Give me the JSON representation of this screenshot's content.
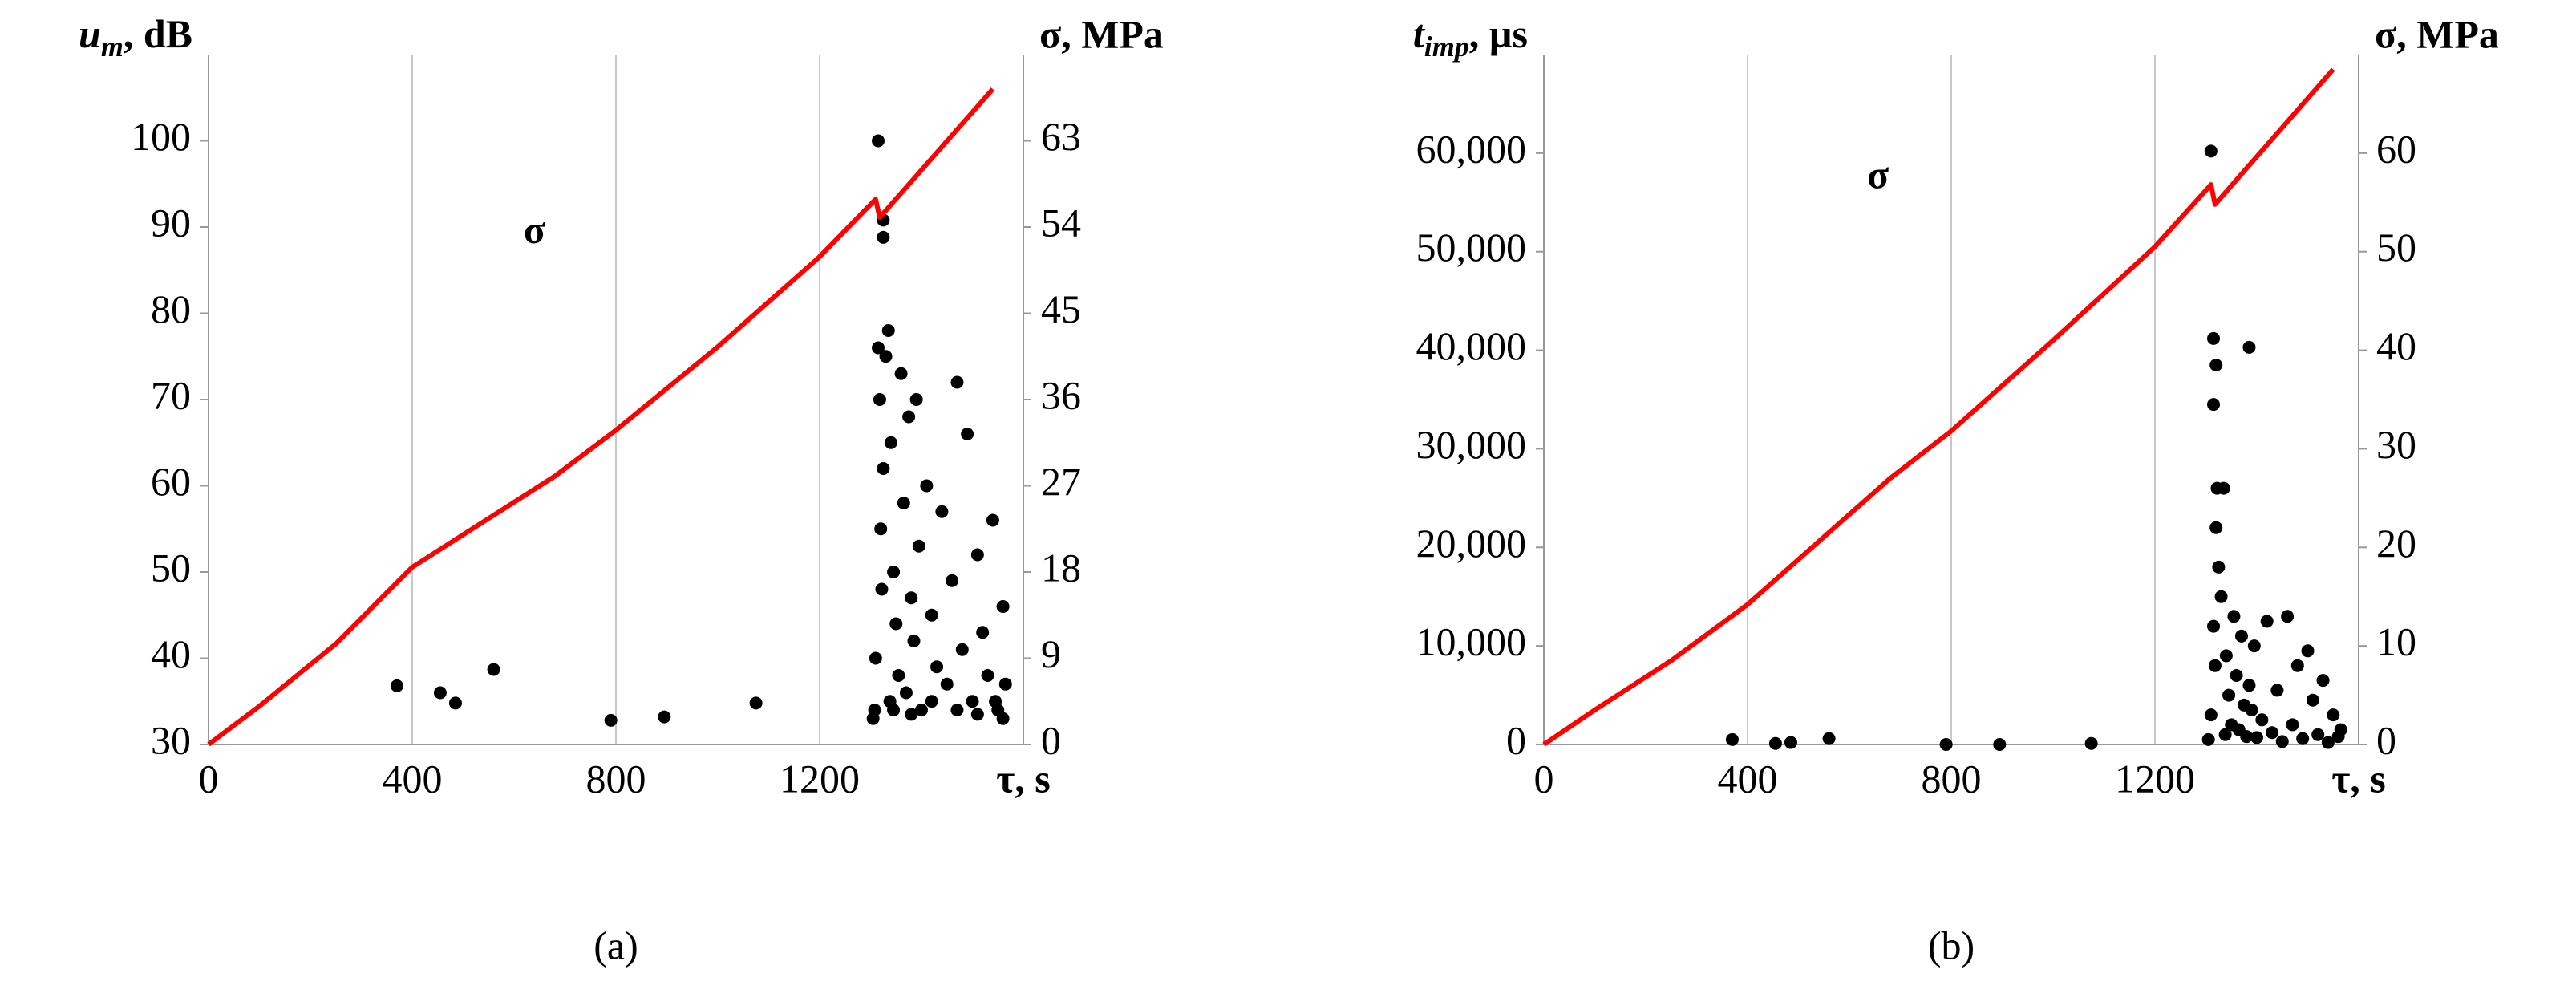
{
  "chart_data": [
    {
      "type": "scatter",
      "caption": "(a)",
      "xlabel": "τ, s",
      "ylabel": {
        "main": "u",
        "sub": "m",
        "unit": ", dB"
      },
      "y2label": "σ, MPa",
      "xlim": [
        0,
        1600
      ],
      "xticks": [
        0,
        400,
        800,
        1200
      ],
      "ylim": [
        30,
        110
      ],
      "yticks": [
        30,
        40,
        50,
        60,
        70,
        80,
        90,
        100
      ],
      "y2lim": [
        0,
        72
      ],
      "y2ticks": [
        0,
        9,
        18,
        27,
        36,
        45,
        54,
        63
      ],
      "grid": "x",
      "series": [
        {
          "type": "scatter",
          "color": "#000000",
          "x": [
            370,
            455,
            485,
            560,
            790,
            895,
            1075,
            1315,
            1325,
            1325,
            1305,
            1310,
            1315,
            1318,
            1320,
            1322,
            1325,
            1330,
            1335,
            1338,
            1340,
            1345,
            1350,
            1355,
            1360,
            1365,
            1370,
            1375,
            1380,
            1385,
            1390,
            1395,
            1400,
            1410,
            1420,
            1430,
            1440,
            1450,
            1460,
            1470,
            1480,
            1490,
            1500,
            1510,
            1520,
            1530,
            1540,
            1550,
            1560,
            1565,
            1308,
            1345,
            1380,
            1420,
            1470,
            1510,
            1545,
            1560
          ],
          "values": [
            36.8,
            36,
            34.8,
            38.7,
            32.8,
            33.2,
            34.8,
            100,
            90.8,
            88.8,
            33,
            40,
            76,
            70,
            55,
            48,
            62,
            75,
            78,
            35,
            65,
            50,
            44,
            38,
            73,
            58,
            36,
            68,
            47,
            42,
            70,
            53,
            34,
            60,
            45,
            39,
            57,
            37,
            49,
            72,
            41,
            66,
            35,
            52,
            43,
            38,
            56,
            34,
            46,
            37,
            34,
            34,
            33.5,
            35,
            34,
            33.5,
            35,
            33
          ]
        },
        {
          "type": "line",
          "name": "σ",
          "color": "#ff0000",
          "axis": "y2",
          "x": [
            0,
            100,
            250,
            400,
            680,
            800,
            1000,
            1200,
            1310,
            1318,
            1540
          ],
          "values": [
            0,
            4,
            10.5,
            18.5,
            28,
            32.8,
            41.5,
            50.9,
            56.9,
            55,
            68.4
          ]
        }
      ]
    },
    {
      "type": "scatter",
      "caption": "(b)",
      "xlabel": "τ, s",
      "ylabel": {
        "main": "t",
        "sub": "imp",
        "unit": ", µs"
      },
      "y2label": "σ, MPa",
      "xlim": [
        0,
        1600
      ],
      "xticks": [
        0,
        400,
        800,
        1200
      ],
      "ylim": [
        0,
        70000
      ],
      "yticks": [
        0,
        {
          "value": 10000,
          "label": "10,000"
        },
        {
          "value": 20000,
          "label": "20,000"
        },
        {
          "value": 30000,
          "label": "30,000"
        },
        {
          "value": 40000,
          "label": "40,000"
        },
        {
          "value": 50000,
          "label": "50,000"
        },
        {
          "value": 60000,
          "label": "60,000"
        }
      ],
      "y2lim": [
        0,
        70
      ],
      "y2ticks": [
        0,
        10,
        20,
        30,
        40,
        50,
        60
      ],
      "grid": "x",
      "series": [
        {
          "type": "scatter",
          "color": "#000000",
          "x": [
            370,
            455,
            485,
            560,
            790,
            895,
            1075,
            1310,
            1315,
            1320,
            1315,
            1385,
            1305,
            1310,
            1315,
            1318,
            1320,
            1322,
            1325,
            1330,
            1335,
            1338,
            1340,
            1345,
            1350,
            1355,
            1360,
            1365,
            1370,
            1375,
            1380,
            1385,
            1390,
            1395,
            1400,
            1410,
            1420,
            1430,
            1440,
            1450,
            1460,
            1470,
            1480,
            1490,
            1500,
            1510,
            1520,
            1530,
            1540,
            1550,
            1560,
            1565
          ],
          "values": [
            500,
            100,
            200,
            600,
            0,
            0,
            100,
            60200,
            41200,
            38500,
            34500,
            40300,
            500,
            3000,
            12000,
            8000,
            22000,
            26000,
            18000,
            15000,
            26000,
            1000,
            9000,
            5000,
            2000,
            13000,
            7000,
            1500,
            11000,
            4000,
            800,
            6000,
            3500,
            10000,
            700,
            2500,
            12500,
            1200,
            5500,
            300,
            13000,
            2000,
            8000,
            600,
            9500,
            4500,
            1000,
            6500,
            200,
            3000,
            800,
            1500
          ]
        },
        {
          "type": "line",
          "name": "σ",
          "color": "#ff0000",
          "axis": "y2",
          "x": [
            0,
            100,
            250,
            400,
            680,
            800,
            1000,
            1200,
            1310,
            1318,
            1550
          ],
          "values": [
            0,
            3.5,
            8.5,
            14.2,
            27,
            31.8,
            41,
            50.5,
            56.8,
            54.8,
            68.5
          ]
        }
      ]
    }
  ]
}
